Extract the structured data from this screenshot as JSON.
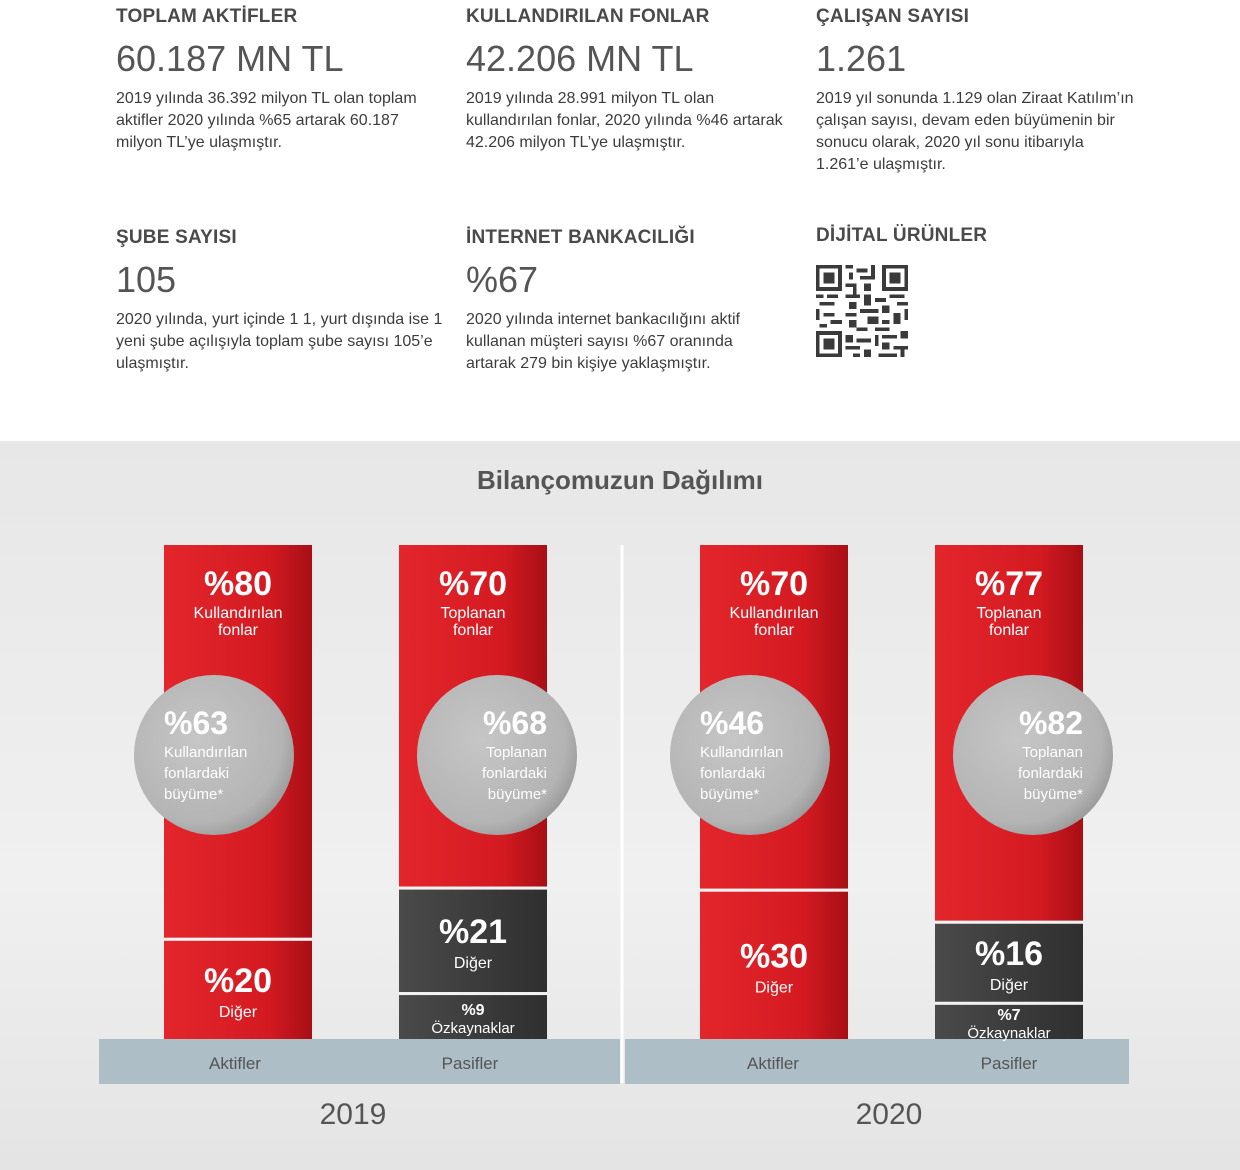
{
  "stats": [
    {
      "head": "TOPLAM AKTİFLER",
      "value": "60.187 MN TL",
      "desc": "2019 yılında 36.392 milyon TL olan toplam aktifler 2020 yılında %65 artarak 60.187 milyon TL’ye ulaşmıştır."
    },
    {
      "head": "KULLANDIRILAN FONLAR",
      "value": "42.206 MN TL",
      "desc": "2019 yılında 28.991 milyon TL olan kullandırılan fonlar, 2020 yılında %46 artarak 42.206 milyon TL’ye ulaşmıştır."
    },
    {
      "head": "ÇALIŞAN SAYISI",
      "value": "1.261",
      "desc": "2019 yıl sonunda 1.129 olan Ziraat Katılım’ın çalışan sayısı, devam eden büyümenin bir sonucu olarak, 2020 yıl sonu itibarıyla 1.261’e ulaşmıştır."
    },
    {
      "head": "ŞUBE SAYISI",
      "value": "105",
      "desc": "2020 yılında, yurt içinde 1 1, yurt dışında ise 1 yeni şube açılışıyla toplam şube sayısı 105’e ulaşmıştır."
    },
    {
      "head": "İNTERNET BANKACILIĞI",
      "value": "%67",
      "desc": "2020 yılında internet bankacılığını aktif kullanan müşteri sayısı %67 oranında artarak 279 bin kişiye yaklaşmıştır."
    },
    {
      "head": "DİJİTAL ÜRÜNLER",
      "value": "",
      "desc": ""
    }
  ],
  "qr_icon": "qr-code-icon",
  "chart_data": {
    "type": "bar",
    "title": "Bilançomuzun Dağılımı",
    "colors": {
      "red": "#d41a21",
      "dark": "#404040",
      "circle": "#b4b4b4",
      "band": "#aebec6"
    },
    "groups": [
      {
        "year": "2019",
        "columns": [
          {
            "name": "Aktifler",
            "segments": [
              {
                "value": 80,
                "pct": "%80",
                "label": "Kullandırılan fonlar",
                "color": "red"
              },
              {
                "value": 20,
                "pct": "%20",
                "label": "Diğer",
                "color": "red"
              }
            ],
            "growth": {
              "pct": "%63",
              "label": "Kullandırılan fonlardaki büyüme*"
            }
          },
          {
            "name": "Pasifler",
            "segments": [
              {
                "value": 70,
                "pct": "%70",
                "label": "Toplanan fonlar",
                "color": "red"
              },
              {
                "value": 21,
                "pct": "%21",
                "label": "Diğer",
                "color": "dark"
              },
              {
                "value": 9,
                "pct": "%9",
                "label": "Özkaynaklar",
                "color": "dark"
              }
            ],
            "growth": {
              "pct": "%68",
              "label": "Toplanan fonlardaki büyüme*"
            }
          }
        ]
      },
      {
        "year": "2020",
        "columns": [
          {
            "name": "Aktifler",
            "segments": [
              {
                "value": 70,
                "pct": "%70",
                "label": "Kullandırılan fonlar",
                "color": "red"
              },
              {
                "value": 30,
                "pct": "%30",
                "label": "Diğer",
                "color": "red"
              }
            ],
            "growth": {
              "pct": "%46",
              "label": "Kullandırılan fonlardaki büyüme*"
            }
          },
          {
            "name": "Pasifler",
            "segments": [
              {
                "value": 77,
                "pct": "%77",
                "label": "Toplanan fonlar",
                "color": "red"
              },
              {
                "value": 16,
                "pct": "%16",
                "label": "Diğer",
                "color": "dark"
              },
              {
                "value": 7,
                "pct": "%7",
                "label": "Özkaynaklar",
                "color": "dark"
              }
            ],
            "growth": {
              "pct": "%82",
              "label": "Toplanan fonlardaki büyüme*"
            }
          }
        ]
      }
    ]
  }
}
